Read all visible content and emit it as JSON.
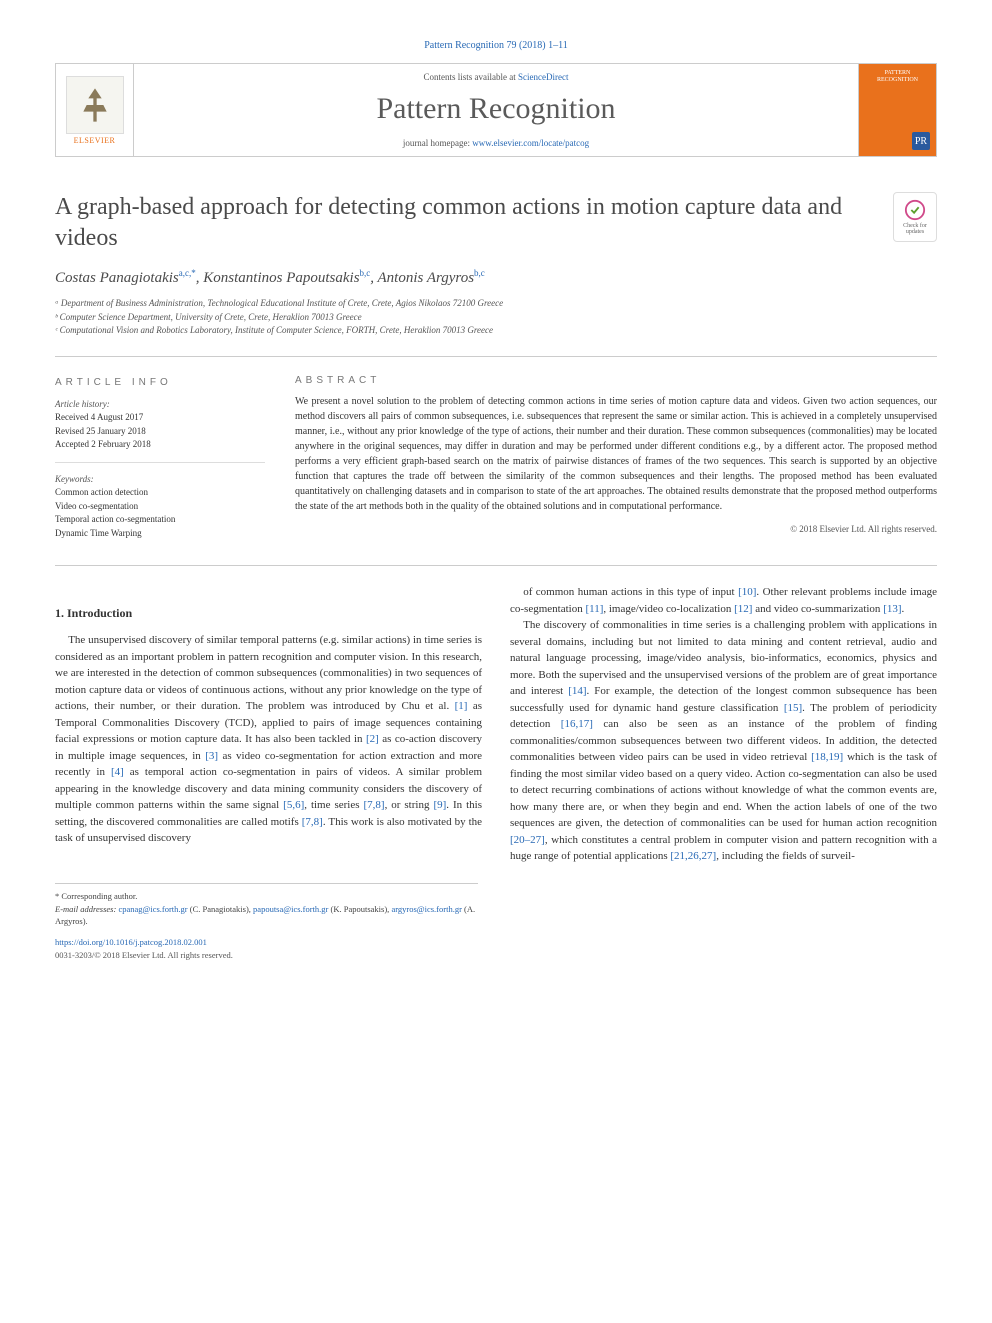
{
  "journal_ref": "Pattern Recognition 79 (2018) 1–11",
  "header": {
    "contents_prefix": "Contents lists available at ",
    "contents_link": "ScienceDirect",
    "journal_name": "Pattern Recognition",
    "homepage_prefix": "journal homepage: ",
    "homepage_link": "www.elsevier.com/locate/patcog",
    "publisher": "ELSEVIER",
    "cover_label": "PATTERN RECOGNITION",
    "cover_badge": "PR"
  },
  "check_badge": "Check for updates",
  "title": "A graph-based approach for detecting common actions in motion capture data and videos",
  "authors_html": "Costas Panagiotakis<sup>a,c,*</sup>, Konstantinos Papoutsakis<sup>b,c</sup>, Antonis Argyros<sup>b,c</sup>",
  "affiliations": [
    "ᵃ Department of Business Administration, Technological Educational Institute of Crete, Crete, Agios Nikolaos 72100 Greece",
    "ᵇ Computer Science Department, University of Crete, Crete, Heraklion 70013 Greece",
    "ᶜ Computational Vision and Robotics Laboratory, Institute of Computer Science, FORTH, Crete, Heraklion 70013 Greece"
  ],
  "info": {
    "heading": "ARTICLE INFO",
    "history_label": "Article history:",
    "history": [
      "Received 4 August 2017",
      "Revised 25 January 2018",
      "Accepted 2 February 2018"
    ],
    "keywords_label": "Keywords:",
    "keywords": [
      "Common action detection",
      "Video co-segmentation",
      "Temporal action co-segmentation",
      "Dynamic Time Warping"
    ]
  },
  "abstract": {
    "heading": "ABSTRACT",
    "text": "We present a novel solution to the problem of detecting common actions in time series of motion capture data and videos. Given two action sequences, our method discovers all pairs of common subsequences, i.e. subsequences that represent the same or similar action. This is achieved in a completely unsupervised manner, i.e., without any prior knowledge of the type of actions, their number and their duration. These common subsequences (commonalities) may be located anywhere in the original sequences, may differ in duration and may be performed under different conditions e.g., by a different actor. The proposed method performs a very efficient graph-based search on the matrix of pairwise distances of frames of the two sequences. This search is supported by an objective function that captures the trade off between the similarity of the common subsequences and their lengths. The proposed method has been evaluated quantitatively on challenging datasets and in comparison to state of the art approaches. The obtained results demonstrate that the proposed method outperforms the state of the art methods both in the quality of the obtained solutions and in computational performance.",
    "copyright": "© 2018 Elsevier Ltd. All rights reserved."
  },
  "section1_heading": "1. Introduction",
  "body": {
    "p1": "The unsupervised discovery of similar temporal patterns (e.g. similar actions) in time series is considered as an important problem in pattern recognition and computer vision. In this research, we are interested in the detection of common subsequences (commonalities) in two sequences of motion capture data or videos of continuous actions, without any prior knowledge on the type of actions, their number, or their duration. The problem was introduced by Chu et al. [1] as Temporal Commonalities Discovery (TCD), applied to pairs of image sequences containing facial expressions or motion capture data. It has also been tackled in [2] as co-action discovery in multiple image sequences, in [3] as video co-segmentation for action extraction and more recently in [4] as temporal action co-segmentation in pairs of videos. A similar problem appearing in the knowledge discovery and data mining community considers the discovery of multiple common patterns within the same signal [5,6], time series [7,8], or string [9]. In this setting, the discovered commonalities are called motifs [7,8]. This work is also motivated by the task of unsupervised discovery",
    "p2": "of common human actions in this type of input [10]. Other relevant problems include image co-segmentation [11], image/video co-localization [12] and video co-summarization [13].",
    "p3": "The discovery of commonalities in time series is a challenging problem with applications in several domains, including but not limited to data mining and content retrieval, audio and natural language processing, image/video analysis, bio-informatics, economics, physics and more. Both the supervised and the unsupervised versions of the problem are of great importance and interest [14]. For example, the detection of the longest common subsequence has been successfully used for dynamic hand gesture classification [15]. The problem of periodicity detection [16,17] can also be seen as an instance of the problem of finding commonalities/common subsequences between two different videos. In addition, the detected commonalities between video pairs can be used in video retrieval [18,19] which is the task of finding the most similar video based on a query video. Action co-segmentation can also be used to detect recurring combinations of actions without knowledge of what the common events are, how many there are, or when they begin and end. When the action labels of one of the two sequences are given, the detection of commonalities can be used for human action recognition [20–27], which constitutes a central problem in computer vision and pattern recognition with a huge range of potential applications [21,26,27], including the fields of surveil-"
  },
  "footnotes": {
    "corr": "* Corresponding author.",
    "email_label": "E-mail addresses:",
    "emails": [
      {
        "addr": "cpanag@ics.forth.gr",
        "who": "(C. Panagiotakis),"
      },
      {
        "addr": "papoutsa@ics.forth.gr",
        "who": "(K. Papoutsakis),"
      },
      {
        "addr": "argyros@ics.forth.gr",
        "who": "(A. Argyros)."
      }
    ]
  },
  "doi": {
    "link": "https://doi.org/10.1016/j.patcog.2018.02.001",
    "issn": "0031-3203/© 2018 Elsevier Ltd. All rights reserved."
  },
  "colors": {
    "link": "#2869b5",
    "orange": "#e9711c",
    "text": "#333333",
    "rule": "#cccccc"
  }
}
